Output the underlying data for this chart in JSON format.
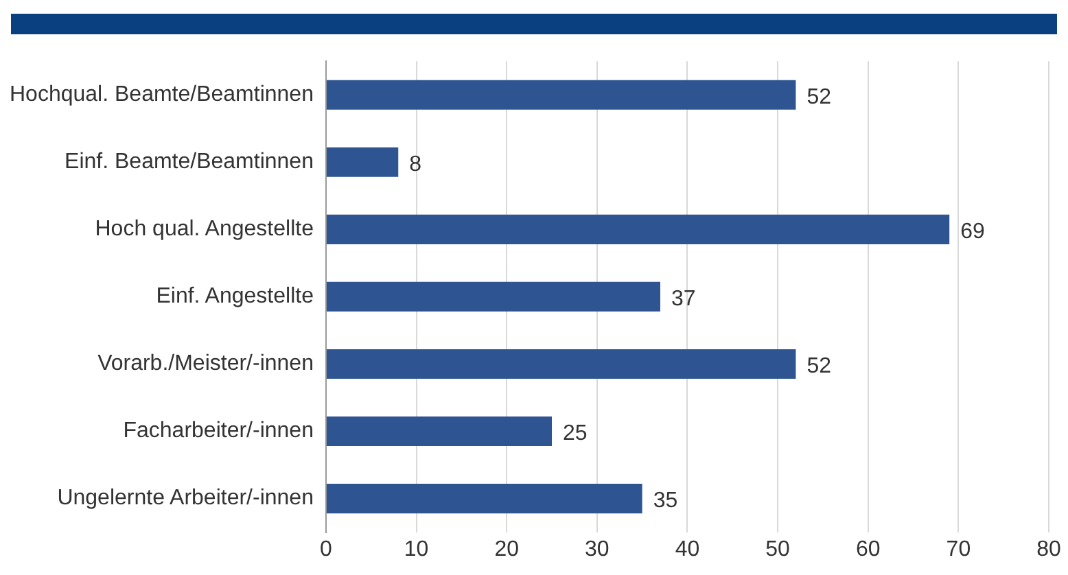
{
  "chart_data": {
    "type": "bar",
    "orientation": "horizontal",
    "categories": [
      "Hochqual. Beamte/Beamtinnen",
      "Einf. Beamte/Beamtinnen",
      "Hoch qual. Angestellte",
      "Einf. Angestellte",
      "Vorarb./Meister/-innen",
      "Facharbeiter/-innen",
      "Ungelernte Arbeiter/-innen"
    ],
    "values": [
      52,
      8,
      69,
      37,
      52,
      25,
      35
    ],
    "color": "#2e5591",
    "xlim": [
      0,
      80
    ],
    "xticks": [
      0,
      10,
      20,
      30,
      40,
      50,
      60,
      70,
      80
    ],
    "grid": "x",
    "data_labels": true,
    "legend": false
  }
}
